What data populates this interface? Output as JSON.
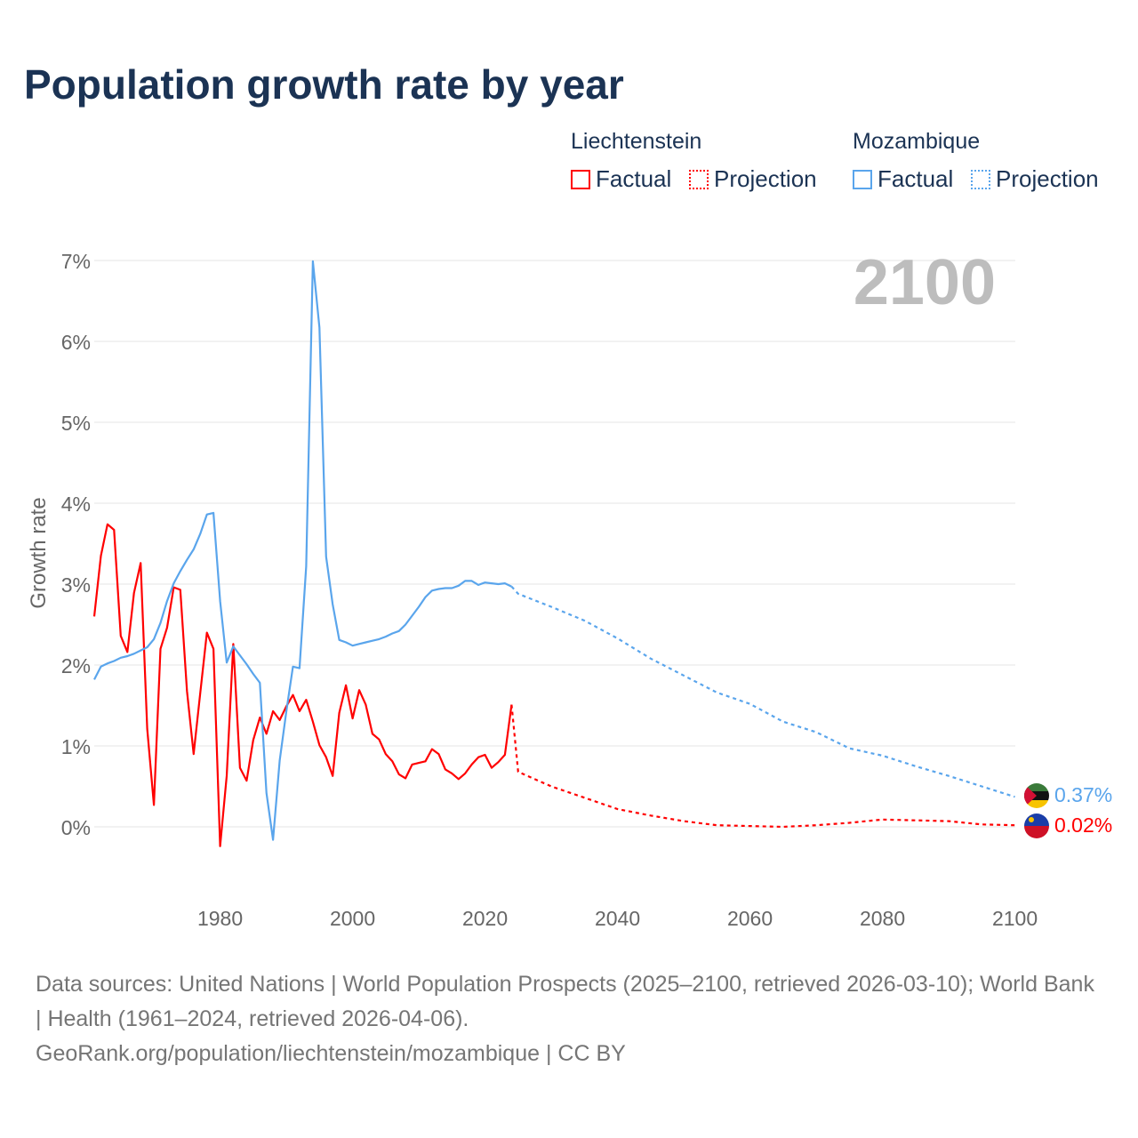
{
  "title": "Population growth rate by year",
  "legend": {
    "groups": [
      {
        "name": "Liechtenstein",
        "factual": "Factual",
        "projection": "Projection",
        "color": "#ff0000"
      },
      {
        "name": "Mozambique",
        "factual": "Factual",
        "projection": "Projection",
        "color": "#5aa5ec"
      }
    ]
  },
  "year_label": "2100",
  "end_labels": {
    "mozambique": "0.37%",
    "liechtenstein": "0.02%"
  },
  "footer": {
    "line1": "Data sources: United Nations | World Population Prospects (2025–2100, retrieved 2026-03-10); World Bank | Health (1961–2024, retrieved 2026-04-06).",
    "line2": "GeoRank.org/population/liechtenstein/mozambique | CC BY"
  },
  "chart_data": {
    "type": "line",
    "title": "Population growth rate by year",
    "xlabel": "",
    "ylabel": "Growth rate",
    "xlim": [
      1961,
      2100
    ],
    "ylim": [
      -0.9,
      7.2
    ],
    "x_ticks": [
      1980,
      2000,
      2020,
      2040,
      2060,
      2080,
      2100
    ],
    "y_ticks": [
      0,
      1,
      2,
      3,
      4,
      5,
      6,
      7
    ],
    "y_tick_labels": [
      "0%",
      "1%",
      "2%",
      "3%",
      "4%",
      "5%",
      "6%",
      "7%"
    ],
    "grid": true,
    "series": [
      {
        "name": "Liechtenstein Factual",
        "color": "#ff0000",
        "dash": false,
        "x_start": 1961,
        "values": [
          2.6,
          3.35,
          3.74,
          3.67,
          2.36,
          2.16,
          2.89,
          3.26,
          1.21,
          0.27,
          2.2,
          2.46,
          2.96,
          2.93,
          1.68,
          0.9,
          1.65,
          2.4,
          2.2,
          -0.24,
          0.63,
          2.26,
          0.73,
          0.57,
          1.07,
          1.35,
          1.15,
          1.43,
          1.32,
          1.49,
          1.63,
          1.43,
          1.57,
          1.3,
          1.01,
          0.86,
          0.63,
          1.41,
          1.75,
          1.34,
          1.69,
          1.51,
          1.15,
          1.08,
          0.9,
          0.81,
          0.65,
          0.6,
          0.77,
          0.79,
          0.81,
          0.96,
          0.9,
          0.71,
          0.66,
          0.59,
          0.66,
          0.77,
          0.86,
          0.89,
          0.73,
          0.8,
          0.89,
          1.51
        ]
      },
      {
        "name": "Liechtenstein Projection",
        "color": "#ff0000",
        "dash": true,
        "x": [
          2024,
          2025,
          2030,
          2035,
          2040,
          2045,
          2050,
          2055,
          2060,
          2065,
          2070,
          2075,
          2080,
          2085,
          2090,
          2095,
          2100
        ],
        "values": [
          1.51,
          0.68,
          0.5,
          0.36,
          0.22,
          0.14,
          0.07,
          0.02,
          0.01,
          0.0,
          0.02,
          0.05,
          0.09,
          0.08,
          0.07,
          0.03,
          0.02
        ]
      },
      {
        "name": "Mozambique Factual",
        "color": "#5aa5ec",
        "dash": false,
        "x_start": 1961,
        "values": [
          1.82,
          1.98,
          2.02,
          2.05,
          2.09,
          2.11,
          2.14,
          2.18,
          2.22,
          2.32,
          2.52,
          2.79,
          3.01,
          3.16,
          3.3,
          3.43,
          3.62,
          3.86,
          3.88,
          2.79,
          2.03,
          2.23,
          2.12,
          2.01,
          1.89,
          1.78,
          0.42,
          -0.16,
          0.82,
          1.43,
          1.98,
          1.96,
          3.22,
          6.99,
          6.17,
          3.34,
          2.75,
          2.31,
          2.28,
          2.24,
          2.26,
          2.28,
          2.3,
          2.32,
          2.35,
          2.39,
          2.42,
          2.5,
          2.61,
          2.72,
          2.84,
          2.92,
          2.94,
          2.95,
          2.95,
          2.98,
          3.04,
          3.04,
          2.99,
          3.02,
          3.01,
          3.0,
          3.01,
          2.97
        ]
      },
      {
        "name": "Mozambique Projection",
        "color": "#5aa5ec",
        "dash": true,
        "x": [
          2024,
          2025,
          2030,
          2035,
          2040,
          2045,
          2050,
          2055,
          2060,
          2065,
          2070,
          2075,
          2080,
          2085,
          2090,
          2095,
          2100
        ],
        "values": [
          2.97,
          2.88,
          2.72,
          2.55,
          2.33,
          2.08,
          1.87,
          1.66,
          1.52,
          1.3,
          1.17,
          0.97,
          0.88,
          0.75,
          0.63,
          0.5,
          0.37
        ]
      }
    ]
  }
}
